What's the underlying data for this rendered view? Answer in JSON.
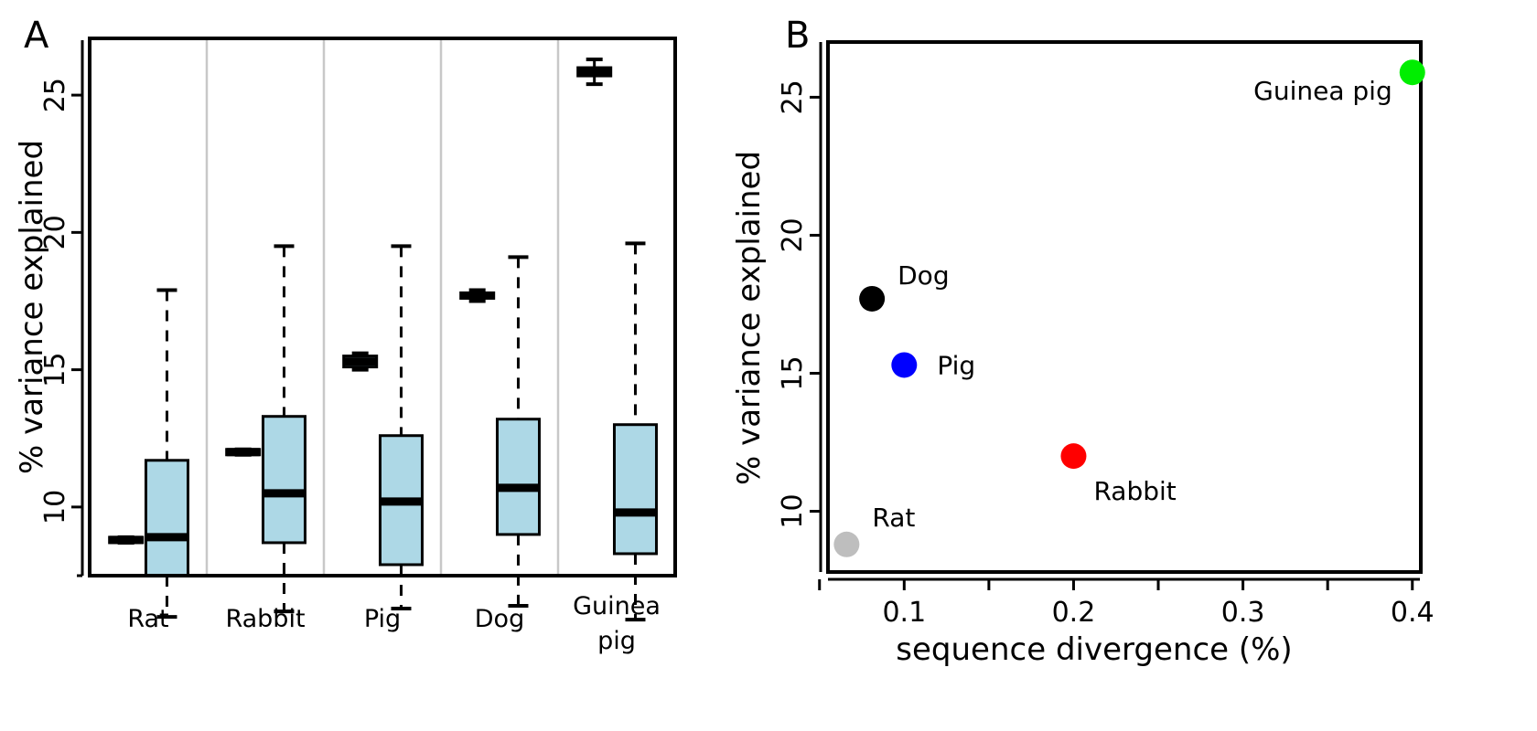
{
  "chart_data": [
    {
      "panel": "A",
      "type": "box",
      "ylabel": "% variance explained",
      "ylim": [
        7.5,
        27.0
      ],
      "yticks": [
        10,
        15,
        20,
        25
      ],
      "fill_color": "#add8e6",
      "separator_color": "#c8c8c8",
      "categories": [
        {
          "label_lines": [
            "Rat"
          ],
          "boxes": [
            {
              "whisker_low": 8.7,
              "q1": 8.7,
              "median": 8.8,
              "q3": 8.9,
              "whisker_high": 8.9
            },
            {
              "whisker_low": 6.0,
              "q1": 7.5,
              "median": 8.9,
              "q3": 11.7,
              "whisker_high": 17.9
            }
          ]
        },
        {
          "label_lines": [
            "Rabbit"
          ],
          "boxes": [
            {
              "whisker_low": 11.9,
              "q1": 11.9,
              "median": 12.0,
              "q3": 12.1,
              "whisker_high": 12.1
            },
            {
              "whisker_low": 6.2,
              "q1": 8.7,
              "median": 10.5,
              "q3": 13.3,
              "whisker_high": 19.5
            }
          ]
        },
        {
          "label_lines": [
            "Pig"
          ],
          "boxes": [
            {
              "whisker_low": 15.0,
              "q1": 15.1,
              "median": 15.3,
              "q3": 15.5,
              "whisker_high": 15.6
            },
            {
              "whisker_low": 6.3,
              "q1": 7.9,
              "median": 10.2,
              "q3": 12.6,
              "whisker_high": 19.5
            }
          ]
        },
        {
          "label_lines": [
            "Dog"
          ],
          "boxes": [
            {
              "whisker_low": 17.5,
              "q1": 17.6,
              "median": 17.7,
              "q3": 17.8,
              "whisker_high": 17.9
            },
            {
              "whisker_low": 6.4,
              "q1": 9.0,
              "median": 10.7,
              "q3": 13.2,
              "whisker_high": 19.1
            }
          ]
        },
        {
          "label_lines": [
            "Guinea",
            "pig"
          ],
          "boxes": [
            {
              "whisker_low": 25.4,
              "q1": 25.7,
              "median": 25.8,
              "q3": 26.0,
              "whisker_high": 26.3
            },
            {
              "whisker_low": 5.9,
              "q1": 8.3,
              "median": 9.8,
              "q3": 13.0,
              "whisker_high": 19.6
            }
          ]
        }
      ]
    },
    {
      "panel": "B",
      "type": "scatter",
      "xlabel": "sequence divergence (%)",
      "ylabel": "% variance explained",
      "xlim": [
        0.055,
        0.405
      ],
      "ylim": [
        7.8,
        27.0
      ],
      "xticks": [
        0.1,
        0.2,
        0.3,
        0.4
      ],
      "minor_xticks": [
        0.05,
        0.15,
        0.25,
        0.35
      ],
      "yticks": [
        10,
        15,
        20,
        25
      ],
      "points": [
        {
          "label": "Guinea pig",
          "x": 0.4,
          "y": 25.9,
          "color": "#00ee00"
        },
        {
          "label": "Dog",
          "x": 0.081,
          "y": 17.7,
          "color": "#000000"
        },
        {
          "label": "Pig",
          "x": 0.1,
          "y": 15.3,
          "color": "#0000ff"
        },
        {
          "label": "Rabbit",
          "x": 0.2,
          "y": 12.0,
          "color": "#ff0000"
        },
        {
          "label": "Rat",
          "x": 0.066,
          "y": 8.8,
          "color": "#bebebe"
        }
      ]
    }
  ]
}
